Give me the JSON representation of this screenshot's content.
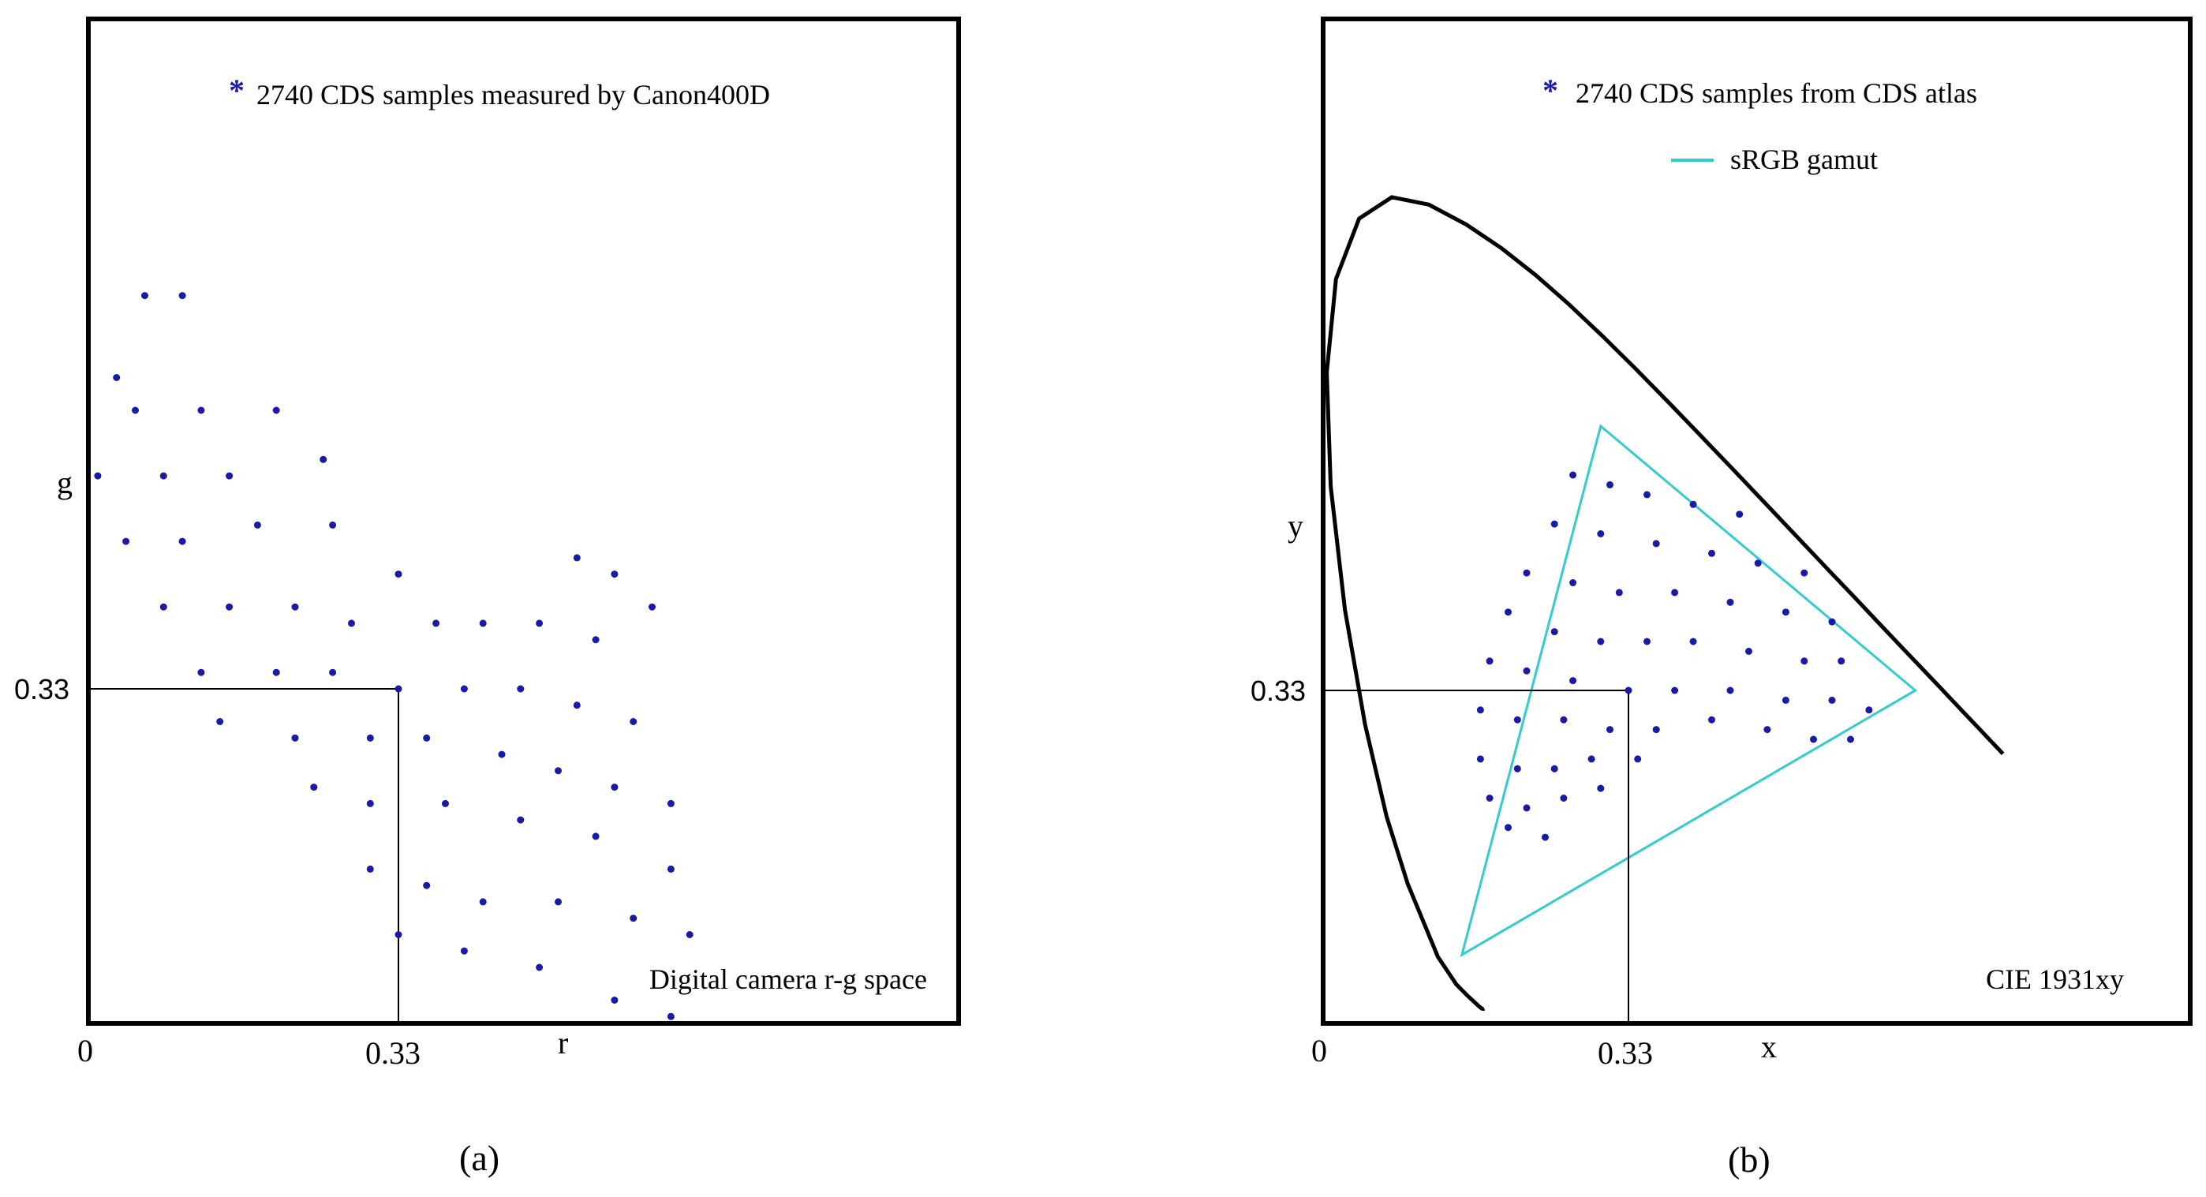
{
  "chart_data": [
    {
      "type": "scatter",
      "panel": "(a)",
      "legend_label": "2740 CDS samples measured by Canon400D",
      "corner_label": "Digital camera r-g space",
      "xlabel": "r",
      "ylabel": "g",
      "x_ticks": [
        "0",
        "0.33"
      ],
      "y_ticks": [
        "0.33"
      ],
      "xlim": [
        0,
        0.9
      ],
      "ylim": [
        0,
        0.66
      ],
      "reference_point": [
        0.33,
        0.33
      ],
      "marker_color": "#1a1aa6",
      "series": [
        {
          "points": [
            [
              0.06,
              0.57
            ],
            [
              0.1,
              0.57
            ],
            [
              0.03,
              0.52
            ],
            [
              0.05,
              0.5
            ],
            [
              0.12,
              0.5
            ],
            [
              0.2,
              0.5
            ],
            [
              0.01,
              0.46
            ],
            [
              0.08,
              0.46
            ],
            [
              0.15,
              0.46
            ],
            [
              0.25,
              0.47
            ],
            [
              0.04,
              0.42
            ],
            [
              0.1,
              0.42
            ],
            [
              0.18,
              0.43
            ],
            [
              0.26,
              0.43
            ],
            [
              0.33,
              0.4
            ],
            [
              0.52,
              0.41
            ],
            [
              0.56,
              0.4
            ],
            [
              0.6,
              0.38
            ],
            [
              0.08,
              0.38
            ],
            [
              0.15,
              0.38
            ],
            [
              0.22,
              0.38
            ],
            [
              0.28,
              0.37
            ],
            [
              0.37,
              0.37
            ],
            [
              0.42,
              0.37
            ],
            [
              0.48,
              0.37
            ],
            [
              0.54,
              0.36
            ],
            [
              0.12,
              0.34
            ],
            [
              0.2,
              0.34
            ],
            [
              0.26,
              0.34
            ],
            [
              0.33,
              0.33
            ],
            [
              0.4,
              0.33
            ],
            [
              0.46,
              0.33
            ],
            [
              0.52,
              0.32
            ],
            [
              0.58,
              0.31
            ],
            [
              0.14,
              0.31
            ],
            [
              0.22,
              0.3
            ],
            [
              0.3,
              0.3
            ],
            [
              0.36,
              0.3
            ],
            [
              0.44,
              0.29
            ],
            [
              0.5,
              0.28
            ],
            [
              0.56,
              0.27
            ],
            [
              0.62,
              0.26
            ],
            [
              0.24,
              0.27
            ],
            [
              0.3,
              0.26
            ],
            [
              0.38,
              0.26
            ],
            [
              0.46,
              0.25
            ],
            [
              0.54,
              0.24
            ],
            [
              0.62,
              0.22
            ],
            [
              0.3,
              0.22
            ],
            [
              0.36,
              0.21
            ],
            [
              0.42,
              0.2
            ],
            [
              0.5,
              0.2
            ],
            [
              0.58,
              0.19
            ],
            [
              0.64,
              0.18
            ],
            [
              0.33,
              0.18
            ],
            [
              0.4,
              0.17
            ],
            [
              0.48,
              0.16
            ],
            [
              0.56,
              0.14
            ],
            [
              0.62,
              0.13
            ]
          ]
        }
      ]
    },
    {
      "type": "scatter",
      "panel": "(b)",
      "legend_label": "2740 CDS samples  from CDS atlas",
      "legend_label_2": "sRGB gamut",
      "corner_label": "CIE 1931xy",
      "xlabel": "x",
      "ylabel": "y",
      "x_ticks": [
        "0",
        "0.33"
      ],
      "y_ticks": [
        "0.33"
      ],
      "xlim": [
        0,
        0.8
      ],
      "ylim": [
        0,
        0.9
      ],
      "reference_point": [
        0.33,
        0.33
      ],
      "marker_color": "#1a1aa6",
      "gamut_color": "#33cccc",
      "locus_color": "#000000",
      "srgb_gamut": [
        [
          0.64,
          0.33
        ],
        [
          0.3,
          0.6
        ],
        [
          0.15,
          0.06
        ]
      ],
      "spectral_locus": [
        [
          0.1741,
          0.005
        ],
        [
          0.1738,
          0.0049
        ],
        [
          0.1733,
          0.0048
        ],
        [
          0.1726,
          0.0048
        ],
        [
          0.1714,
          0.0051
        ],
        [
          0.1689,
          0.0069
        ],
        [
          0.1644,
          0.0109
        ],
        [
          0.1566,
          0.0177
        ],
        [
          0.144,
          0.0297
        ],
        [
          0.1241,
          0.0578
        ],
        [
          0.0913,
          0.1327
        ],
        [
          0.0687,
          0.2007
        ],
        [
          0.0454,
          0.295
        ],
        [
          0.0235,
          0.4127
        ],
        [
          0.0082,
          0.5384
        ],
        [
          0.0039,
          0.6548
        ],
        [
          0.0139,
          0.7502
        ],
        [
          0.0389,
          0.812
        ],
        [
          0.0743,
          0.8338
        ],
        [
          0.1142,
          0.8262
        ],
        [
          0.1547,
          0.8059
        ],
        [
          0.1929,
          0.7816
        ],
        [
          0.2296,
          0.7543
        ],
        [
          0.2658,
          0.7243
        ],
        [
          0.3016,
          0.6923
        ],
        [
          0.3373,
          0.6589
        ],
        [
          0.3731,
          0.6245
        ],
        [
          0.4087,
          0.5896
        ],
        [
          0.4441,
          0.5547
        ],
        [
          0.4788,
          0.5202
        ],
        [
          0.5125,
          0.4866
        ],
        [
          0.5448,
          0.4544
        ],
        [
          0.5752,
          0.4242
        ],
        [
          0.6029,
          0.3965
        ],
        [
          0.627,
          0.3725
        ],
        [
          0.6482,
          0.3514
        ],
        [
          0.6658,
          0.334
        ],
        [
          0.6801,
          0.3197
        ],
        [
          0.6915,
          0.3083
        ],
        [
          0.7006,
          0.2993
        ],
        [
          0.7079,
          0.292
        ],
        [
          0.714,
          0.2859
        ],
        [
          0.719,
          0.2809
        ],
        [
          0.723,
          0.277
        ],
        [
          0.726,
          0.274
        ],
        [
          0.7347,
          0.2653
        ]
      ],
      "series": [
        {
          "points": [
            [
              0.27,
              0.55
            ],
            [
              0.31,
              0.54
            ],
            [
              0.35,
              0.53
            ],
            [
              0.4,
              0.52
            ],
            [
              0.45,
              0.51
            ],
            [
              0.25,
              0.5
            ],
            [
              0.3,
              0.49
            ],
            [
              0.36,
              0.48
            ],
            [
              0.42,
              0.47
            ],
            [
              0.47,
              0.46
            ],
            [
              0.52,
              0.45
            ],
            [
              0.22,
              0.45
            ],
            [
              0.27,
              0.44
            ],
            [
              0.32,
              0.43
            ],
            [
              0.38,
              0.43
            ],
            [
              0.44,
              0.42
            ],
            [
              0.5,
              0.41
            ],
            [
              0.55,
              0.4
            ],
            [
              0.2,
              0.41
            ],
            [
              0.25,
              0.39
            ],
            [
              0.3,
              0.38
            ],
            [
              0.35,
              0.38
            ],
            [
              0.4,
              0.38
            ],
            [
              0.46,
              0.37
            ],
            [
              0.52,
              0.36
            ],
            [
              0.56,
              0.36
            ],
            [
              0.18,
              0.36
            ],
            [
              0.22,
              0.35
            ],
            [
              0.27,
              0.34
            ],
            [
              0.33,
              0.33
            ],
            [
              0.38,
              0.33
            ],
            [
              0.44,
              0.33
            ],
            [
              0.5,
              0.32
            ],
            [
              0.55,
              0.32
            ],
            [
              0.59,
              0.31
            ],
            [
              0.17,
              0.31
            ],
            [
              0.21,
              0.3
            ],
            [
              0.26,
              0.3
            ],
            [
              0.31,
              0.29
            ],
            [
              0.36,
              0.29
            ],
            [
              0.42,
              0.3
            ],
            [
              0.48,
              0.29
            ],
            [
              0.53,
              0.28
            ],
            [
              0.57,
              0.28
            ],
            [
              0.17,
              0.26
            ],
            [
              0.21,
              0.25
            ],
            [
              0.25,
              0.25
            ],
            [
              0.29,
              0.26
            ],
            [
              0.34,
              0.26
            ],
            [
              0.18,
              0.22
            ],
            [
              0.22,
              0.21
            ],
            [
              0.26,
              0.22
            ],
            [
              0.3,
              0.23
            ],
            [
              0.2,
              0.19
            ],
            [
              0.24,
              0.18
            ]
          ]
        }
      ]
    }
  ]
}
